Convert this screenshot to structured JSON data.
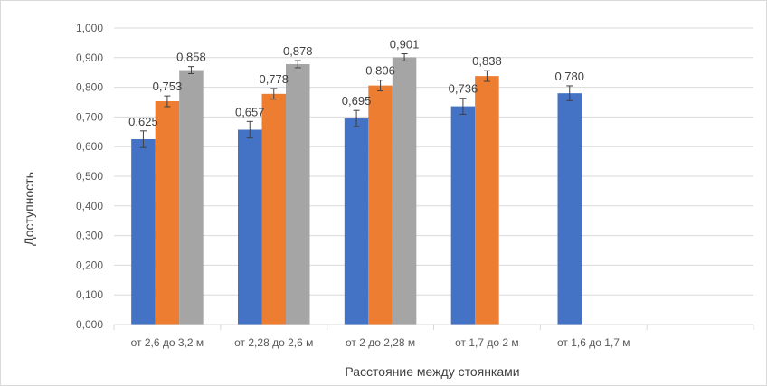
{
  "chart_data": {
    "type": "bar",
    "title": "",
    "xlabel": "Расстояние между стоянками",
    "ylabel": "Доступность",
    "ylim": [
      0,
      1
    ],
    "yticks": [
      "0,000",
      "0,100",
      "0,200",
      "0,300",
      "0,400",
      "0,500",
      "0,600",
      "0,700",
      "0,800",
      "0,900",
      "1,000"
    ],
    "grid": true,
    "legend": "none",
    "categories": [
      "от 2,6 до 3,2 м",
      "от 2,28 до 2,6 м",
      "от 2 до 2,28 м",
      "от 1,7 до 2 м",
      "от 1,6 до 1,7 м",
      ""
    ],
    "series": [
      {
        "color": "#4472c4",
        "values": [
          0.625,
          0.657,
          0.695,
          0.736,
          0.78,
          null
        ],
        "labels": [
          "0,625",
          "0,657",
          "0,695",
          "0,736",
          "0,780",
          null
        ],
        "errors": [
          0.028,
          0.028,
          0.027,
          0.027,
          0.025,
          null
        ]
      },
      {
        "color": "#ed7d31",
        "values": [
          0.753,
          0.778,
          0.806,
          0.838,
          null,
          null
        ],
        "labels": [
          "0,753",
          "0,778",
          "0,806",
          "0,838",
          null,
          null
        ],
        "errors": [
          0.018,
          0.018,
          0.018,
          0.018,
          null,
          null
        ]
      },
      {
        "color": "#a5a5a5",
        "values": [
          0.858,
          0.878,
          0.901,
          null,
          null,
          null
        ],
        "labels": [
          "0,858",
          "0,878",
          "0,901",
          null,
          null,
          null
        ],
        "errors": [
          0.012,
          0.012,
          0.012,
          null,
          null,
          null
        ]
      }
    ]
  }
}
